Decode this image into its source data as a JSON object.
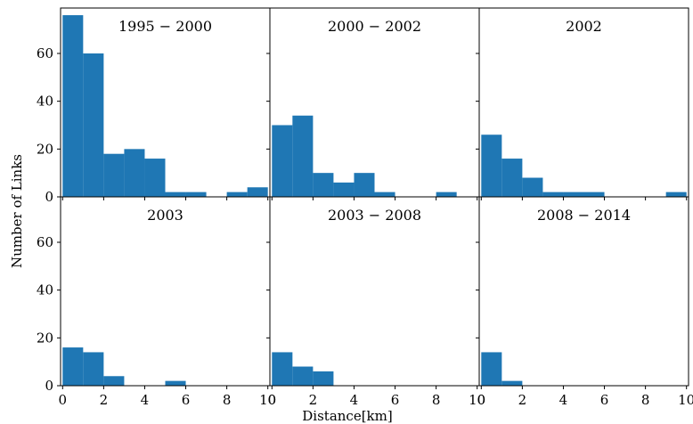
{
  "figure": {
    "ylabel": "Number of Links",
    "xlabel": "Distance[km]",
    "bar_color": "#1f77b4"
  },
  "chart_data": {
    "type": "bar",
    "layout": "2x3 grid of histograms with shared axes",
    "bin_edges": [
      0,
      1,
      2,
      3,
      4,
      5,
      6,
      7,
      8,
      9,
      10
    ],
    "xlim": [
      -0.1,
      10.1
    ],
    "ylim": [
      0,
      79
    ],
    "xticks": [
      0,
      2,
      4,
      6,
      8,
      10
    ],
    "yticks": [
      0,
      20,
      40,
      60
    ],
    "panels": [
      {
        "title": "1995 − 2000",
        "values": [
          76,
          60,
          18,
          20,
          16,
          2,
          2,
          0,
          2,
          4
        ]
      },
      {
        "title": "2000 − 2002",
        "values": [
          30,
          34,
          10,
          6,
          10,
          2,
          0,
          0,
          2,
          0
        ]
      },
      {
        "title": "2002",
        "values": [
          26,
          16,
          8,
          2,
          2,
          2,
          0,
          0,
          0,
          2
        ]
      },
      {
        "title": "2003",
        "values": [
          16,
          14,
          4,
          0,
          0,
          2,
          0,
          0,
          0,
          0
        ]
      },
      {
        "title": "2003 − 2008",
        "values": [
          14,
          8,
          6,
          0,
          0,
          0,
          0,
          0,
          0,
          0
        ]
      },
      {
        "title": "2008 − 2014",
        "values": [
          14,
          2,
          0,
          0,
          0,
          0,
          0,
          0,
          0,
          0
        ]
      }
    ]
  }
}
